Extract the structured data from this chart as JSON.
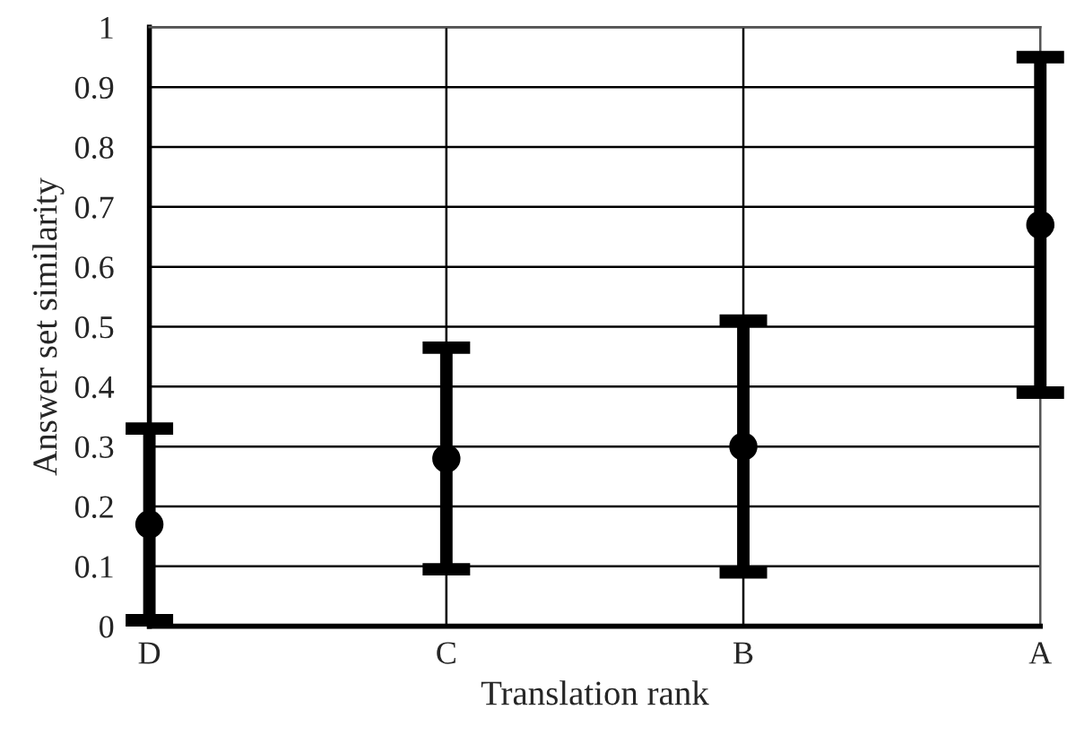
{
  "chart_data": {
    "type": "scatter",
    "xlabel": "Translation rank",
    "ylabel": "Answer set similarity",
    "categories": [
      "D",
      "C",
      "B",
      "A"
    ],
    "values": [
      0.17,
      0.28,
      0.3,
      0.67
    ],
    "errors": [
      0.16,
      0.185,
      0.21,
      0.28
    ],
    "color": "#000000",
    "marker": "circle",
    "ylim": [
      0,
      1
    ],
    "yticks": [
      0,
      0.1,
      0.2,
      0.3,
      0.4,
      0.5,
      0.6,
      0.7,
      0.8,
      0.9,
      1
    ],
    "grid": true,
    "legend": false
  }
}
